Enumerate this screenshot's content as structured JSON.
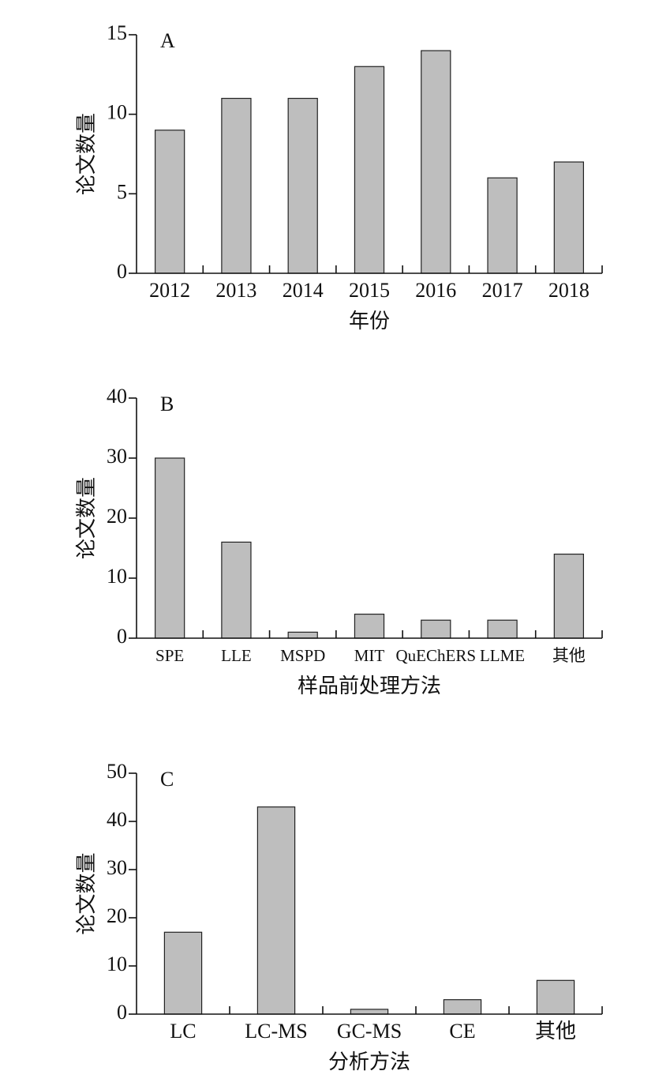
{
  "chart_data": [
    {
      "type": "bar",
      "panel": "A",
      "ylabel": "论文数量",
      "xlabel": "年份",
      "categories": [
        "2012",
        "2013",
        "2014",
        "2015",
        "2016",
        "2017",
        "2018"
      ],
      "values": [
        9,
        11,
        11,
        13,
        14,
        6,
        7
      ],
      "color": "#bebebe",
      "ylim": [
        0,
        15
      ],
      "yticks": [
        0,
        5,
        10,
        15
      ]
    },
    {
      "type": "bar",
      "panel": "B",
      "ylabel": "论文数量",
      "xlabel": "样品前处理方法",
      "categories": [
        "SPE",
        "LLE",
        "MSPD",
        "MIT",
        "QuEChERS",
        "LLME",
        "其他"
      ],
      "values": [
        30,
        16,
        1,
        4,
        3,
        3,
        14
      ],
      "color": "#bebebe",
      "ylim": [
        0,
        40
      ],
      "yticks": [
        0,
        10,
        20,
        30,
        40
      ]
    },
    {
      "type": "bar",
      "panel": "C",
      "ylabel": "论文数量",
      "xlabel": "分析方法",
      "categories": [
        "LC",
        "LC-MS",
        "GC-MS",
        "CE",
        "其他"
      ],
      "values": [
        17,
        43,
        1,
        3,
        7
      ],
      "color": "#bebebe",
      "ylim": [
        0,
        50
      ],
      "yticks": [
        0,
        10,
        20,
        30,
        40,
        50
      ]
    }
  ]
}
